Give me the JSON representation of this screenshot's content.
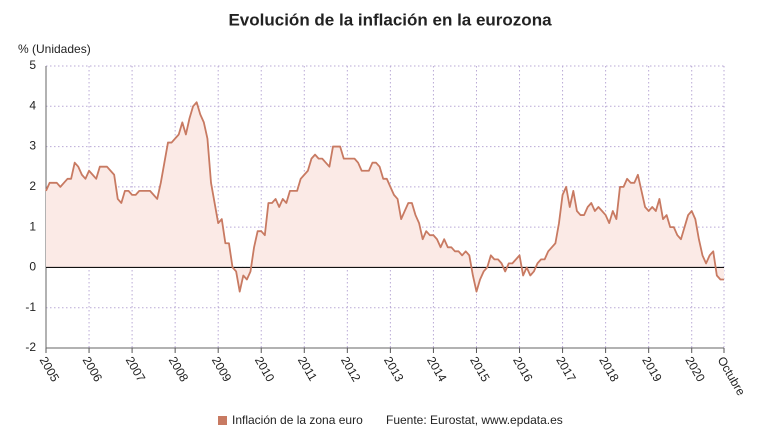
{
  "chart_data": {
    "type": "line",
    "title": "Evolución de la inflación en la eurozona",
    "y_label": "% (Unidades)",
    "source": "Fuente: Eurostat, www.epdata.es",
    "categories": [
      "2005",
      null,
      null,
      null,
      null,
      null,
      null,
      null,
      null,
      null,
      null,
      null,
      "2006",
      null,
      null,
      null,
      null,
      null,
      null,
      null,
      null,
      null,
      null,
      null,
      "2007",
      null,
      null,
      null,
      null,
      null,
      null,
      null,
      null,
      null,
      null,
      null,
      "2008",
      null,
      null,
      null,
      null,
      null,
      null,
      null,
      null,
      null,
      null,
      null,
      "2009",
      null,
      null,
      null,
      null,
      null,
      null,
      null,
      null,
      null,
      null,
      null,
      "2010",
      null,
      null,
      null,
      null,
      null,
      null,
      null,
      null,
      null,
      null,
      null,
      "2011",
      null,
      null,
      null,
      null,
      null,
      null,
      null,
      null,
      null,
      null,
      null,
      "2012",
      null,
      null,
      null,
      null,
      null,
      null,
      null,
      null,
      null,
      null,
      null,
      "2013",
      null,
      null,
      null,
      null,
      null,
      null,
      null,
      null,
      null,
      null,
      null,
      "2014",
      null,
      null,
      null,
      null,
      null,
      null,
      null,
      null,
      null,
      null,
      null,
      "2015",
      null,
      null,
      null,
      null,
      null,
      null,
      null,
      null,
      null,
      null,
      null,
      "2016",
      null,
      null,
      null,
      null,
      null,
      null,
      null,
      null,
      null,
      null,
      null,
      "2017",
      null,
      null,
      null,
      null,
      null,
      null,
      null,
      null,
      null,
      null,
      null,
      "2018",
      null,
      null,
      null,
      null,
      null,
      null,
      null,
      null,
      null,
      null,
      null,
      "2019",
      null,
      null,
      null,
      null,
      null,
      null,
      null,
      null,
      null,
      null,
      null,
      "2020",
      null,
      null,
      null,
      null,
      null,
      null,
      null,
      null,
      "Octubre"
    ],
    "series": [
      {
        "name": "Inflación de la zona euro",
        "color": "#c87a62",
        "area_color": "#fbeae6",
        "values": [
          1.9,
          2.1,
          2.1,
          2.1,
          2.0,
          2.1,
          2.2,
          2.2,
          2.6,
          2.5,
          2.3,
          2.2,
          2.4,
          2.3,
          2.2,
          2.5,
          2.5,
          2.5,
          2.4,
          2.3,
          1.7,
          1.6,
          1.9,
          1.9,
          1.8,
          1.8,
          1.9,
          1.9,
          1.9,
          1.9,
          1.8,
          1.7,
          2.1,
          2.6,
          3.1,
          3.1,
          3.2,
          3.3,
          3.6,
          3.3,
          3.7,
          4.0,
          4.1,
          3.8,
          3.6,
          3.2,
          2.1,
          1.6,
          1.1,
          1.2,
          0.6,
          0.6,
          0.0,
          -0.1,
          -0.6,
          -0.2,
          -0.3,
          -0.1,
          0.5,
          0.9,
          0.9,
          0.8,
          1.6,
          1.6,
          1.7,
          1.5,
          1.7,
          1.6,
          1.9,
          1.9,
          1.9,
          2.2,
          2.3,
          2.4,
          2.7,
          2.8,
          2.7,
          2.7,
          2.6,
          2.5,
          3.0,
          3.0,
          3.0,
          2.7,
          2.7,
          2.7,
          2.7,
          2.6,
          2.4,
          2.4,
          2.4,
          2.6,
          2.6,
          2.5,
          2.2,
          2.2,
          2.0,
          1.8,
          1.7,
          1.2,
          1.4,
          1.6,
          1.6,
          1.3,
          1.1,
          0.7,
          0.9,
          0.8,
          0.8,
          0.7,
          0.5,
          0.7,
          0.5,
          0.5,
          0.4,
          0.4,
          0.3,
          0.4,
          0.3,
          -0.2,
          -0.6,
          -0.3,
          -0.1,
          0.0,
          0.3,
          0.2,
          0.2,
          0.1,
          -0.1,
          0.1,
          0.1,
          0.2,
          0.3,
          -0.2,
          0.0,
          -0.2,
          -0.1,
          0.1,
          0.2,
          0.2,
          0.4,
          0.5,
          0.6,
          1.1,
          1.8,
          2.0,
          1.5,
          1.9,
          1.4,
          1.3,
          1.3,
          1.5,
          1.6,
          1.4,
          1.5,
          1.4,
          1.3,
          1.1,
          1.4,
          1.2,
          2.0,
          2.0,
          2.2,
          2.1,
          2.1,
          2.3,
          1.9,
          1.5,
          1.4,
          1.5,
          1.4,
          1.7,
          1.2,
          1.3,
          1.0,
          1.0,
          0.8,
          0.7,
          1.0,
          1.3,
          1.4,
          1.2,
          0.7,
          0.3,
          0.1,
          0.3,
          0.4,
          -0.2,
          -0.3,
          -0.3
        ]
      }
    ],
    "ylim": [
      -2,
      5
    ],
    "yticks": [
      -2,
      -1,
      0,
      1,
      2,
      3,
      4,
      5
    ],
    "grid": true
  }
}
